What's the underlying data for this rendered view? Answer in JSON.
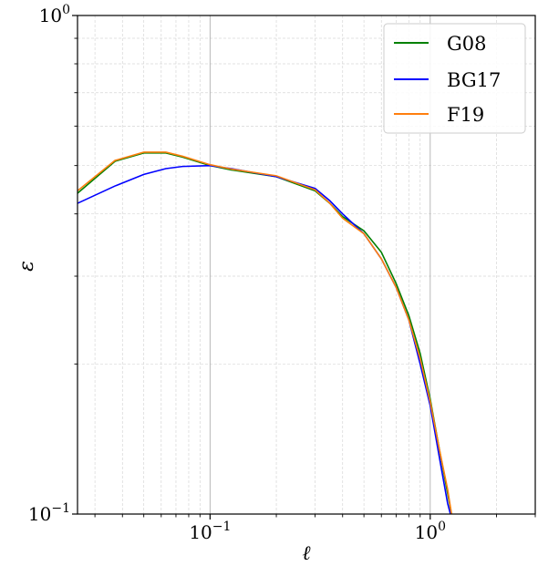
{
  "chart_data": {
    "type": "line",
    "xlabel": "ℓ",
    "ylabel": "ε",
    "xscale": "log",
    "yscale": "log",
    "xlim": [
      0.025,
      3.0
    ],
    "ylim": [
      0.1,
      1.0
    ],
    "grid": true,
    "legend_position": "top-right",
    "x_major_ticks": [
      {
        "value": 0.1,
        "base": "10",
        "exp": "−1"
      },
      {
        "value": 1.0,
        "base": "10",
        "exp": "0"
      }
    ],
    "y_major_ticks": [
      {
        "value": 0.1,
        "base": "10",
        "exp": "−1"
      },
      {
        "value": 1.0,
        "base": "10",
        "exp": "0"
      }
    ],
    "series": [
      {
        "name": "G08",
        "color": "#008000",
        "x": [
          0.025,
          0.037,
          0.05,
          0.063,
          0.075,
          0.1,
          0.125,
          0.2,
          0.3,
          0.35,
          0.4,
          0.5,
          0.6,
          0.7,
          0.8,
          0.9,
          1.0,
          1.1,
          1.2,
          1.25
        ],
        "y": [
          0.44,
          0.51,
          0.53,
          0.53,
          0.52,
          0.5,
          0.49,
          0.475,
          0.445,
          0.42,
          0.395,
          0.37,
          0.335,
          0.29,
          0.25,
          0.21,
          0.17,
          0.135,
          0.11,
          0.1
        ]
      },
      {
        "name": "BG17",
        "color": "#0000ff",
        "x": [
          0.025,
          0.037,
          0.05,
          0.063,
          0.075,
          0.1,
          0.125,
          0.2,
          0.3,
          0.35,
          0.4,
          0.5,
          0.6,
          0.7,
          0.8,
          0.9,
          1.0,
          1.1,
          1.2,
          1.25
        ],
        "y": [
          0.42,
          0.455,
          0.48,
          0.493,
          0.498,
          0.5,
          0.493,
          0.475,
          0.45,
          0.425,
          0.4,
          0.365,
          0.325,
          0.285,
          0.245,
          0.2,
          0.165,
          0.13,
          0.105,
          0.098
        ]
      },
      {
        "name": "F19",
        "color": "#ff7f0e",
        "x": [
          0.025,
          0.037,
          0.05,
          0.063,
          0.075,
          0.1,
          0.125,
          0.2,
          0.3,
          0.35,
          0.4,
          0.5,
          0.6,
          0.7,
          0.8,
          0.9,
          1.0,
          1.1,
          1.2,
          1.25
        ],
        "y": [
          0.445,
          0.512,
          0.532,
          0.532,
          0.522,
          0.502,
          0.492,
          0.477,
          0.447,
          0.42,
          0.392,
          0.365,
          0.325,
          0.285,
          0.245,
          0.205,
          0.168,
          0.135,
          0.112,
          0.1
        ]
      }
    ]
  }
}
